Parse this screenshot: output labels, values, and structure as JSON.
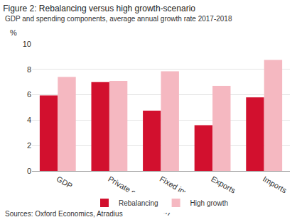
{
  "chart_data": {
    "type": "bar",
    "title": "Figure 2: Rebalancing versus high growth-scenario",
    "subtitle": "GDP and spending components, average annual growth rate 2017-2018",
    "y_label": "%",
    "source": "Sources: Oxford Economics, Atradius",
    "categories": [
      "GDP",
      "Private consumption",
      "Fixed investment",
      "Exports",
      "Imports"
    ],
    "series": [
      {
        "name": "Rebalancing",
        "color": "#d2102e",
        "values": [
          5.95,
          7.0,
          4.75,
          3.6,
          5.8
        ]
      },
      {
        "name": "High growth",
        "color": "#f5b8c1",
        "values": [
          7.4,
          7.1,
          7.85,
          6.7,
          8.75
        ]
      }
    ],
    "ylim": [
      0,
      10
    ],
    "yticks": [
      0,
      2,
      4,
      6,
      8,
      10
    ],
    "grid": true,
    "legend": "bottom"
  }
}
